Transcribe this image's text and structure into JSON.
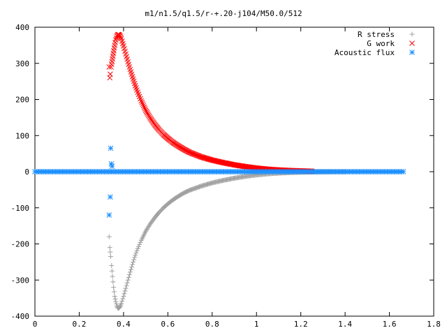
{
  "chart_data": {
    "type": "scatter",
    "title": "m1/n1.5/q1.5/r-+.20-j104/M50.0/512",
    "xlabel": "",
    "ylabel": "",
    "xlim": [
      0,
      1.8
    ],
    "ylim": [
      -400,
      400
    ],
    "xticks": [
      0,
      0.2,
      0.4,
      0.6,
      0.8,
      1,
      1.2,
      1.4,
      1.6,
      1.8
    ],
    "xtick_labels": [
      "0",
      "0.2",
      "0.4",
      "0.6",
      "0.8",
      "1",
      "1.2",
      "1.4",
      "1.6",
      "1.8"
    ],
    "yticks": [
      -400,
      -300,
      -200,
      -100,
      0,
      100,
      200,
      300,
      400
    ],
    "ytick_labels": [
      "-400",
      "-300",
      "-200",
      "-100",
      "0",
      "100",
      "200",
      "300",
      "400"
    ],
    "grid": false,
    "legend_position": "top-right",
    "series": [
      {
        "name": "R stress",
        "color": "#a0a0a0",
        "marker": "plus",
        "x": [
          0.335,
          0.338,
          0.342,
          0.346,
          0.35,
          0.355,
          0.36,
          0.365,
          0.37,
          0.375,
          0.38,
          0.385,
          0.39,
          0.4,
          0.41,
          0.42,
          0.43,
          0.44,
          0.45,
          0.46,
          0.48,
          0.5,
          0.52,
          0.54,
          0.56,
          0.58,
          0.6,
          0.625,
          0.65,
          0.675,
          0.7,
          0.75,
          0.8,
          0.85,
          0.9,
          0.95,
          1.0,
          1.05,
          1.1,
          1.15,
          1.2,
          1.25,
          1.3,
          1.35,
          1.4
        ],
        "y": [
          -180,
          -210,
          -235,
          -260,
          -290,
          -320,
          -345,
          -360,
          -372,
          -378,
          -377,
          -373,
          -365,
          -345,
          -323,
          -300,
          -278,
          -257,
          -237,
          -219,
          -190,
          -165,
          -145,
          -128,
          -113,
          -100,
          -89,
          -77,
          -67,
          -58,
          -51,
          -40,
          -31,
          -24,
          -18,
          -13,
          -9,
          -6,
          -4,
          -2.5,
          -1.5,
          -1,
          -0.5,
          -0.3,
          -0.2
        ]
      },
      {
        "name": "G work",
        "color": "#ff0000",
        "marker": "cross",
        "x": [
          0.335,
          0.338,
          0.34,
          0.344,
          0.348,
          0.352,
          0.356,
          0.36,
          0.365,
          0.37,
          0.375,
          0.38,
          0.385,
          0.39,
          0.4,
          0.41,
          0.42,
          0.43,
          0.44,
          0.45,
          0.46,
          0.48,
          0.5,
          0.52,
          0.54,
          0.56,
          0.58,
          0.6,
          0.625,
          0.65,
          0.675,
          0.7,
          0.75,
          0.8,
          0.85,
          0.9,
          0.95,
          1.0,
          1.05,
          1.1,
          1.15,
          1.2,
          1.25
        ],
        "y": [
          290,
          260,
          270,
          290,
          305,
          320,
          335,
          350,
          365,
          375,
          380,
          379,
          375,
          368,
          348,
          326,
          304,
          283,
          263,
          244,
          226,
          196,
          170,
          149,
          131,
          116,
          103,
          92,
          80,
          70,
          61,
          53,
          41,
          32,
          25,
          19,
          14,
          10,
          7,
          5,
          3.5,
          2.5,
          1.5
        ]
      },
      {
        "name": "Acoustic flux",
        "color": "#1e90ff",
        "marker": "star",
        "x": [
          0.335,
          0.34,
          0.342,
          0.345,
          0.348
        ],
        "y": [
          -120,
          -70,
          65,
          22,
          15
        ],
        "baseline": {
          "x_from": 0.0,
          "x_to": 1.67,
          "y": 0
        }
      }
    ]
  }
}
